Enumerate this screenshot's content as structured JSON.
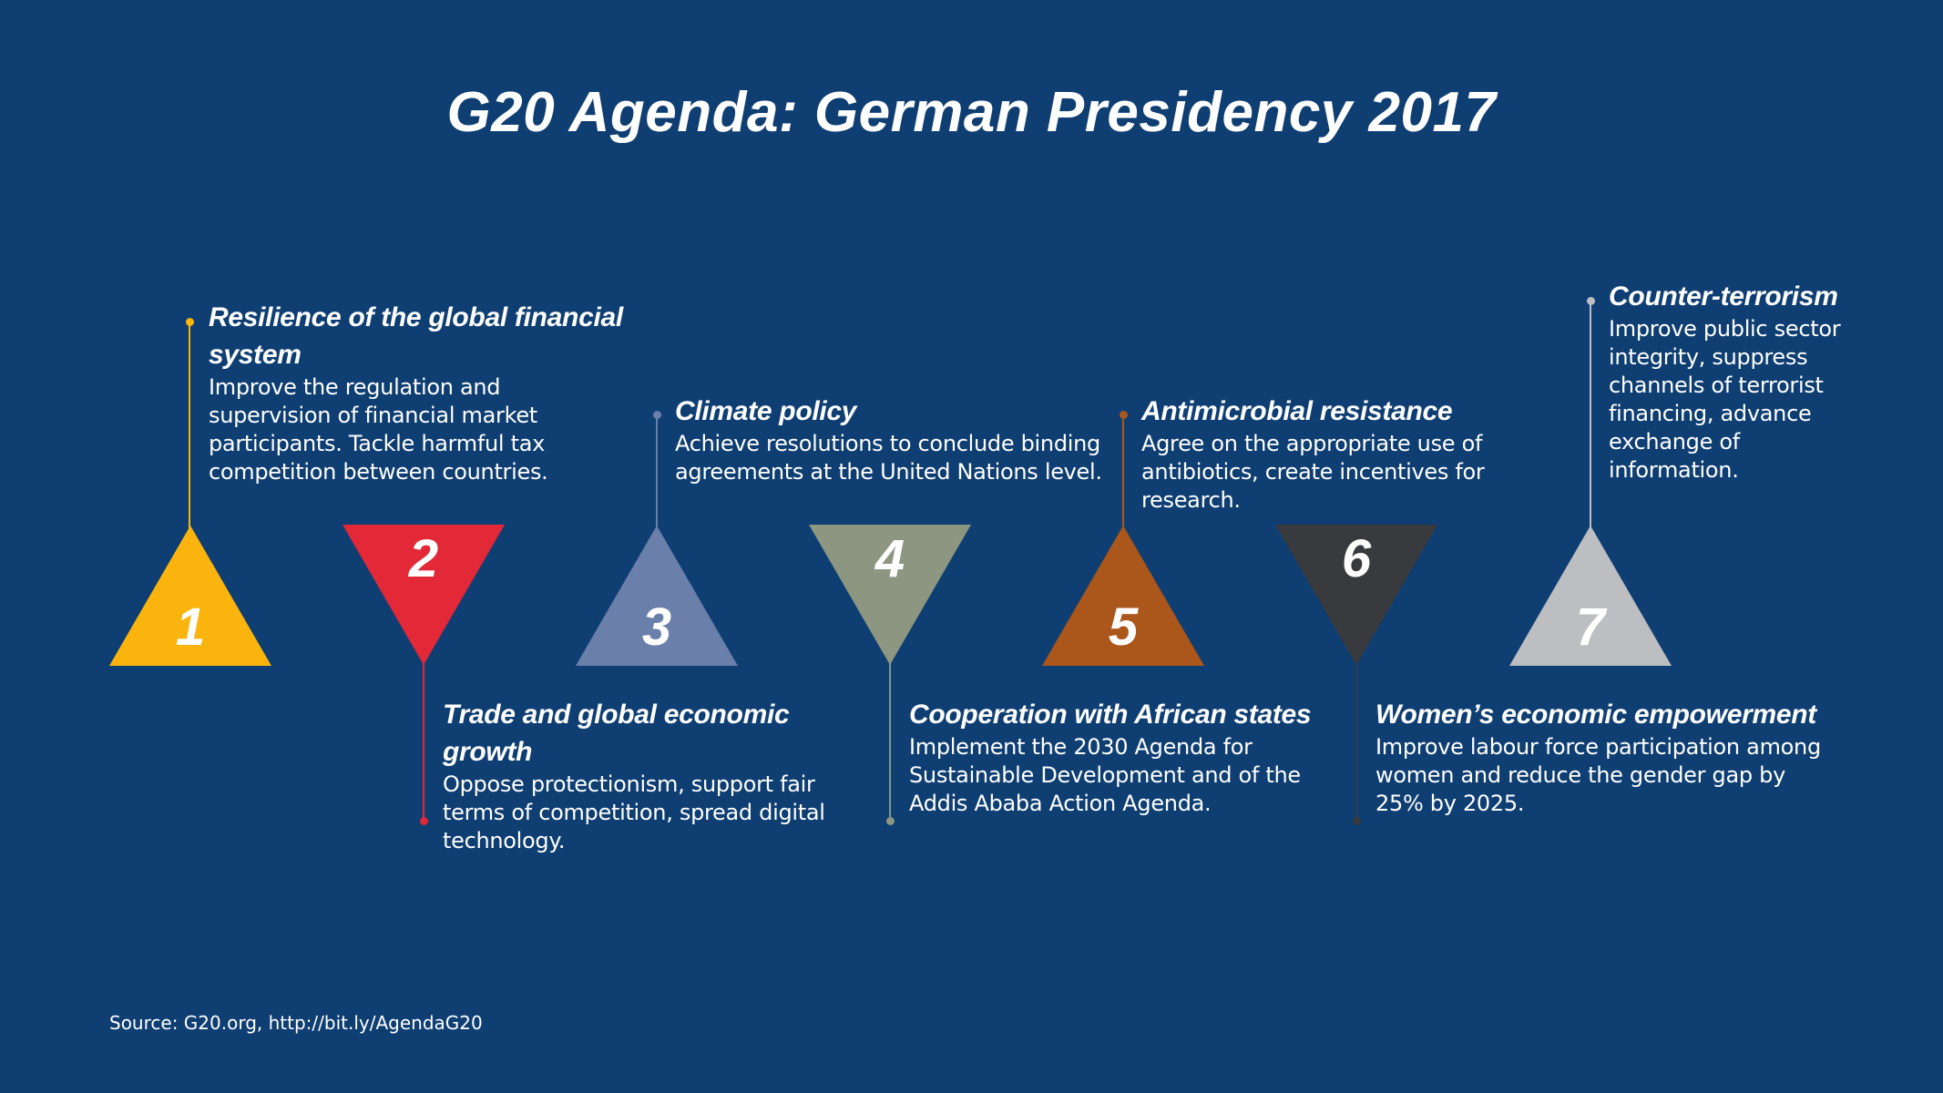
{
  "title": "G20 Agenda: German Presidency 2017",
  "source": "Source: G20.org, http://bit.ly/AgendaG20",
  "items": [
    {
      "number": "1",
      "color": "#fbb40d",
      "title": "Resilience of the global financial system",
      "description": "Improve the regulation and supervision of financial market participants. Tackle harmful tax competition between countries."
    },
    {
      "number": "2",
      "color": "#e32838",
      "title": "Trade and global economic growth",
      "description": "Oppose protectionism, support fair terms of competition, spread digital technology."
    },
    {
      "number": "3",
      "color": "#6a7fa9",
      "title": "Climate policy",
      "description": "Achieve resolutions to conclude binding agreements at the United Nations level."
    },
    {
      "number": "4",
      "color": "#8c9680",
      "title": "Cooperation with African states",
      "description": "Implement the 2030 Agenda for Sustainable Development and of the Addis Ababa Action Agenda."
    },
    {
      "number": "5",
      "color": "#ab561a",
      "title": "Antimicrobial resistance",
      "description": "Agree on the appropriate use of antibiotics, create incentives for research."
    },
    {
      "number": "6",
      "color": "#393a3d",
      "title": "Women’s economic empowerment",
      "description": "Improve labour force participation among women and reduce the gender gap by 25% by 2025."
    },
    {
      "number": "7",
      "color": "#bcbec2",
      "title": "Counter-terrorism",
      "description": "Improve public sector integrity, suppress channels of terrorist financing, advance exchange of information."
    }
  ]
}
